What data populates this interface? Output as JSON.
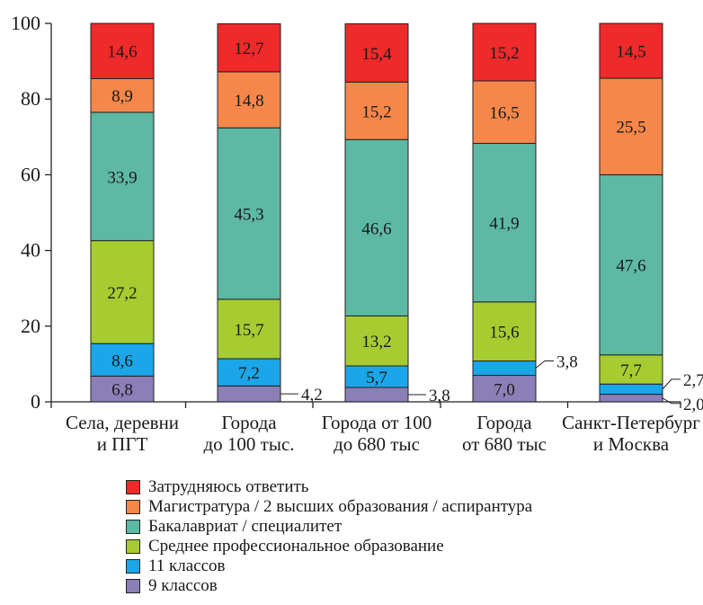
{
  "chart_data": {
    "type": "bar",
    "stacked": true,
    "ylim": [
      0,
      100
    ],
    "yticks": [
      "0",
      "20",
      "40",
      "60",
      "80",
      "100"
    ],
    "categories": [
      [
        "Села, деревни",
        "и ПГТ"
      ],
      [
        "Города",
        "до 100 тыс."
      ],
      [
        "Города от 100",
        "до 680 тыс"
      ],
      [
        "Города",
        "от 680 тыс"
      ],
      [
        "Санкт-Петербург",
        "и Москва"
      ]
    ],
    "series": [
      {
        "name": "9 классов",
        "color": "#8c7fb8",
        "values": [
          6.8,
          4.2,
          3.8,
          7.0,
          2.0
        ],
        "labels": [
          "6,8",
          "4,2",
          "3,8",
          "7,0",
          "2,0"
        ]
      },
      {
        "name": "11 классов",
        "color": "#1aa6e8",
        "values": [
          8.6,
          7.2,
          5.7,
          3.8,
          2.7
        ],
        "labels": [
          "8,6",
          "7,2",
          "5,7",
          "3,8",
          "2,7"
        ]
      },
      {
        "name": "Среднее профессиональное образование",
        "color": "#a6cc32",
        "values": [
          27.2,
          15.7,
          13.2,
          15.6,
          7.7
        ],
        "labels": [
          "27,2",
          "15,7",
          "13,2",
          "15,6",
          "7,7"
        ]
      },
      {
        "name": "Бакалавриат / специалитет",
        "color": "#5db8a4",
        "values": [
          33.9,
          45.3,
          46.6,
          41.9,
          47.6
        ],
        "labels": [
          "33,9",
          "45,3",
          "46,6",
          "41,9",
          "47,6"
        ]
      },
      {
        "name": "Магистратура / 2 высших образования / аспирантура",
        "color": "#f5874a",
        "values": [
          8.9,
          14.8,
          15.2,
          16.5,
          25.5
        ],
        "labels": [
          "8,9",
          "14,8",
          "15,2",
          "16,5",
          "25,5"
        ]
      },
      {
        "name": "Затрудняюсь ответить",
        "color": "#ee2a2a",
        "values": [
          14.6,
          12.7,
          15.4,
          15.2,
          14.5
        ],
        "labels": [
          "14,6",
          "12,7",
          "15,4",
          "15,2",
          "14,5"
        ]
      }
    ],
    "legend_order": [
      5,
      4,
      3,
      2,
      1,
      0
    ],
    "legend_position": "bottom",
    "grid": false
  }
}
